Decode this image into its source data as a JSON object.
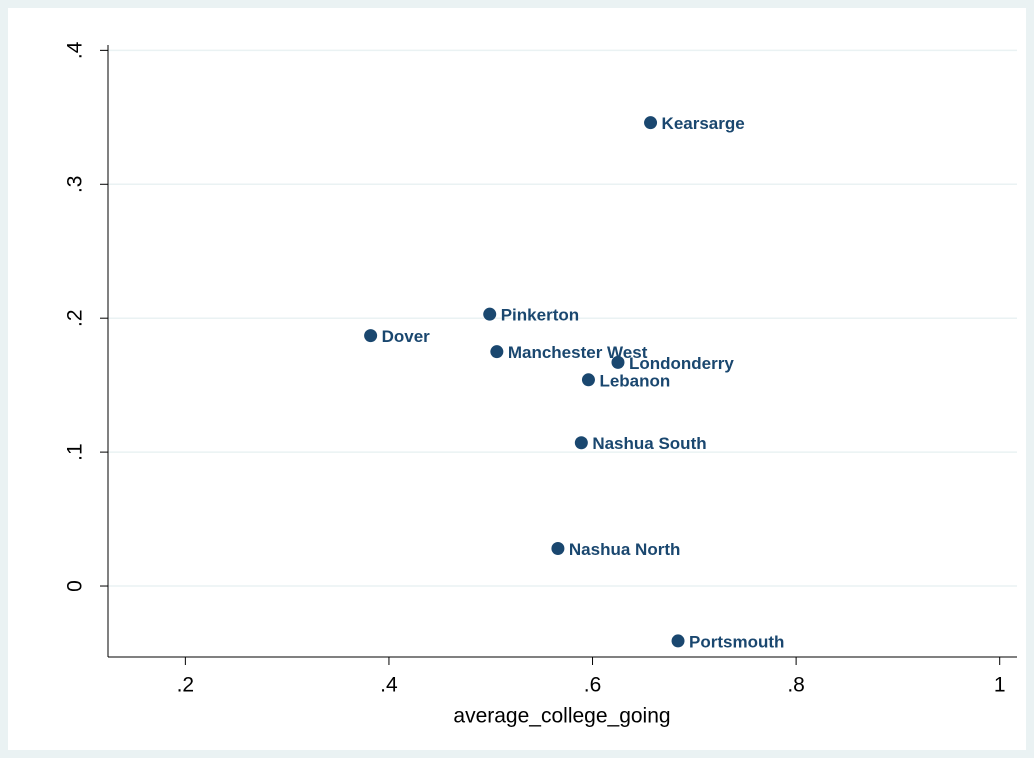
{
  "chart_data": {
    "type": "scatter",
    "x_label": "average_college_going",
    "point_labels": [
      "Kearsarge",
      "Pinkerton",
      "Dover",
      "Manchester West",
      "Londonderry",
      "Lebanon",
      "Nashua South",
      "Nashua North",
      "Portsmouth"
    ],
    "x": [
      0.657,
      0.499,
      0.382,
      0.506,
      0.625,
      0.596,
      0.589,
      0.566,
      0.684
    ],
    "values": [
      0.346,
      0.203,
      0.187,
      0.175,
      0.167,
      0.154,
      0.107,
      0.028,
      -0.041
    ],
    "color": "#1a476f",
    "xlim": [
      0.124,
      1.017
    ],
    "ylim": [
      -0.053,
      0.404
    ],
    "xticks": [
      {
        "value": 0.2,
        "label": ".2"
      },
      {
        "value": 0.4,
        "label": ".4"
      },
      {
        "value": 0.6,
        "label": ".6"
      },
      {
        "value": 0.8,
        "label": ".8"
      },
      1
    ],
    "yticks": [
      0,
      {
        "value": 0.1,
        "label": ".1"
      },
      {
        "value": 0.2,
        "label": ".2"
      },
      {
        "value": 0.3,
        "label": ".3"
      },
      {
        "value": 0.4,
        "label": ".4"
      }
    ],
    "grid": true
  }
}
